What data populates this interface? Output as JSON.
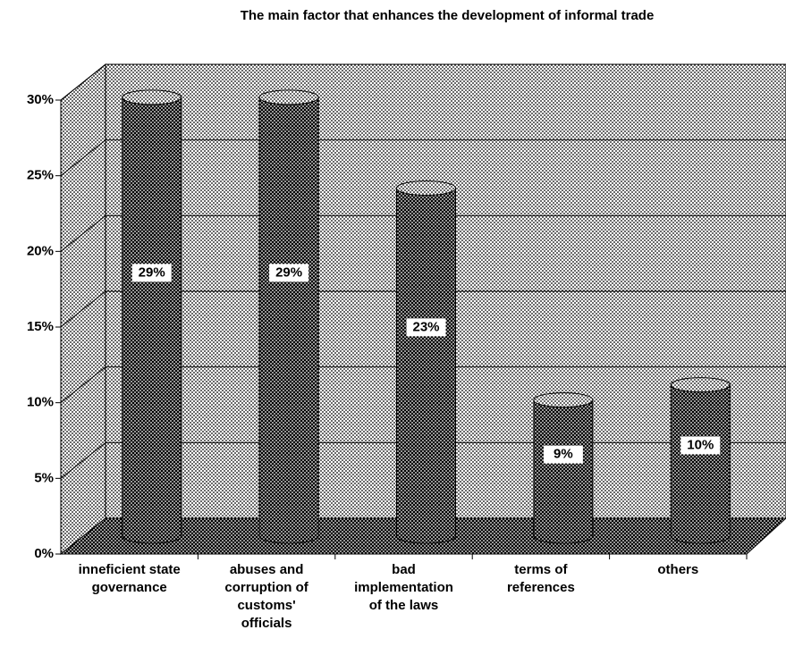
{
  "chart_data": {
    "type": "bar",
    "title": "The main factor that enhances the development of informal trade",
    "categories": [
      "inneficient state\ngovernance",
      "abuses and\ncorruption of\ncustoms'\nofficials",
      "bad\nimplementation\nof the laws",
      "terms of\nreferences",
      "others"
    ],
    "values": [
      29,
      29,
      23,
      9,
      10
    ],
    "value_labels": [
      "29%",
      "29%",
      "23%",
      "9%",
      "10%"
    ],
    "ylim": [
      0,
      30
    ],
    "yticks": [
      {
        "value": 0,
        "label": "0%"
      },
      {
        "value": 5,
        "label": "5%"
      },
      {
        "value": 10,
        "label": "10%"
      },
      {
        "value": 15,
        "label": "15%"
      },
      {
        "value": 20,
        "label": "20%"
      },
      {
        "value": 25,
        "label": "25%"
      },
      {
        "value": 30,
        "label": "30%"
      }
    ],
    "grid": true,
    "color": "#000000"
  }
}
